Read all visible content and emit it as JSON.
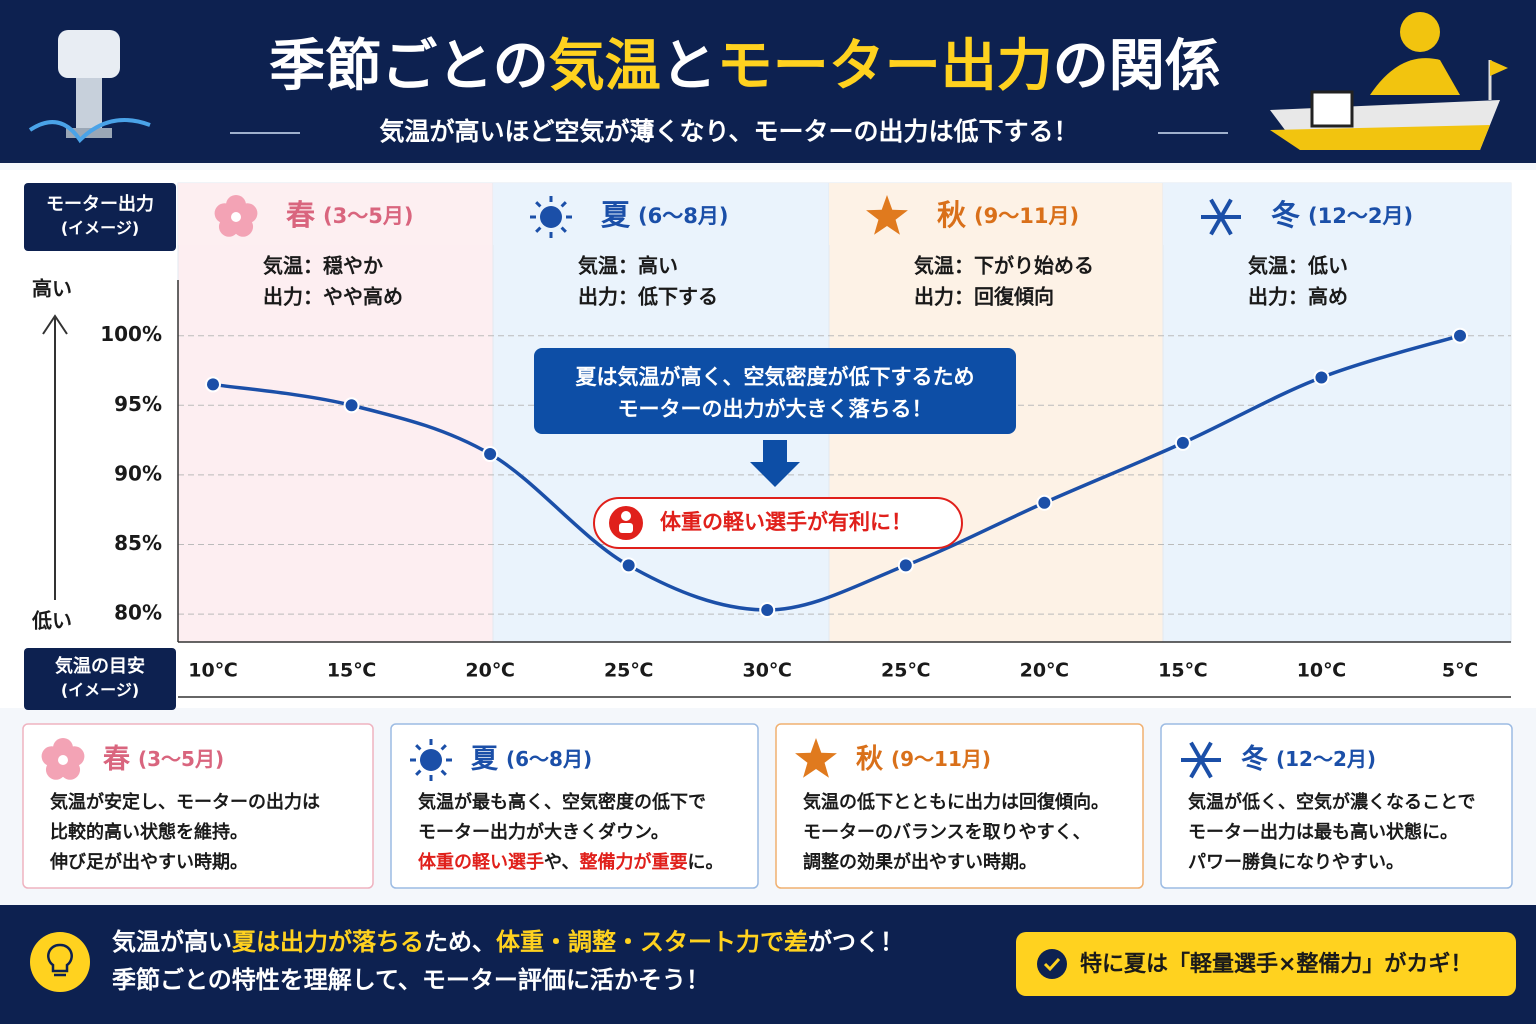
{
  "header": {
    "title": [
      {
        "text": "季節ごとの",
        "color": "#ffffff"
      },
      {
        "text": "気温",
        "color": "#ffd21f"
      },
      {
        "text": "と",
        "color": "#ffffff"
      },
      {
        "text": "モーター出力",
        "color": "#ffd21f"
      },
      {
        "text": "の関係",
        "color": "#ffffff"
      }
    ],
    "subtitle": "気温が高いほど空気が薄くなり、モーターの出力は低下する！"
  },
  "chart_data": {
    "type": "line",
    "y_label": [
      "モーター出力",
      "(イメージ)"
    ],
    "y_high": "高い",
    "y_low": "低い",
    "x_label": [
      "気温の目安",
      "(イメージ)"
    ],
    "categories": [
      "10℃",
      "15℃",
      "20℃",
      "25℃",
      "30℃",
      "25℃",
      "20℃",
      "15℃",
      "10℃",
      "5℃"
    ],
    "series": [
      {
        "name": "モーター出力",
        "color": "#1b4fa8",
        "values": [
          96.5,
          95,
          91.5,
          83.5,
          80.3,
          83.5,
          88,
          92.3,
          97,
          100
        ]
      }
    ],
    "ylim": [
      78,
      104
    ],
    "yticks": [
      {
        "value": 80,
        "label": "80%"
      },
      {
        "value": 85,
        "label": "85%"
      },
      {
        "value": 90,
        "label": "90%"
      },
      {
        "value": 95,
        "label": "95%"
      },
      {
        "value": 100,
        "label": "100%"
      }
    ],
    "grid": true,
    "bands": [
      {
        "name": "春",
        "period": "(3〜5月)",
        "color": "#d9657e",
        "fill": "#fdeef1",
        "lines": [
          "気温：穏やか",
          "出力：やや高め"
        ]
      },
      {
        "name": "夏",
        "period": "(6〜8月)",
        "color": "#1b4fa8",
        "fill": "#eaf3fc",
        "lines": [
          "気温：高い",
          "出力：低下する"
        ]
      },
      {
        "name": "秋",
        "period": "(9〜11月)",
        "color": "#d9701a",
        "fill": "#fdf2e6",
        "lines": [
          "気温：下がり始める",
          "出力：回復傾向"
        ]
      },
      {
        "name": "冬",
        "period": "(12〜2月)",
        "color": "#1b4fa8",
        "fill": "#eaf3fc",
        "lines": [
          "気温：低い",
          "出力：高め"
        ]
      }
    ],
    "annotations": [
      {
        "text": [
          "夏は気温が高く、空気密度が低下するため",
          "モーターの出力が大きく落ちる！"
        ]
      },
      {
        "text": [
          "体重の軽い選手が有利に！"
        ]
      }
    ]
  },
  "cards": [
    {
      "name": "春",
      "period": "(3〜5月)",
      "color": "#d9657e",
      "lines": [
        [
          {
            "text": "気温が安定し、モーターの出力は",
            "color": "#1a1a1a"
          }
        ],
        [
          {
            "text": "比較的高い状態を維持。",
            "color": "#1a1a1a"
          }
        ],
        [
          {
            "text": "伸び足が出やすい時期。",
            "color": "#1a1a1a"
          }
        ]
      ]
    },
    {
      "name": "夏",
      "period": "(6〜8月)",
      "color": "#1b4fa8",
      "lines": [
        [
          {
            "text": "気温が最も高く、空気密度の低下で",
            "color": "#1a1a1a"
          }
        ],
        [
          {
            "text": "モーター出力が大きくダウン。",
            "color": "#1a1a1a"
          }
        ],
        [
          {
            "text": "体重の軽い選手",
            "color": "#e0201b"
          },
          {
            "text": "や、",
            "color": "#1a1a1a"
          },
          {
            "text": "整備力が重要",
            "color": "#e0201b"
          },
          {
            "text": "に。",
            "color": "#1a1a1a"
          }
        ]
      ]
    },
    {
      "name": "秋",
      "period": "(9〜11月)",
      "color": "#d9701a",
      "lines": [
        [
          {
            "text": "気温の低下とともに出力は回復傾向。",
            "color": "#1a1a1a"
          }
        ],
        [
          {
            "text": "モーターのバランスを取りやすく、",
            "color": "#1a1a1a"
          }
        ],
        [
          {
            "text": "調整の効果が出やすい時期。",
            "color": "#1a1a1a"
          }
        ]
      ]
    },
    {
      "name": "冬",
      "period": "(12〜2月)",
      "color": "#1b4fa8",
      "lines": [
        [
          {
            "text": "気温が低く、空気が濃くなることで",
            "color": "#1a1a1a"
          }
        ],
        [
          {
            "text": "モーター出力は最も高い状態に。",
            "color": "#1a1a1a"
          }
        ],
        [
          {
            "text": "パワー勝負になりやすい。",
            "color": "#1a1a1a"
          }
        ]
      ]
    }
  ],
  "footer": {
    "lines": [
      [
        {
          "text": "気温が高い",
          "color": "#ffffff"
        },
        {
          "text": "夏は出力が落ちる",
          "color": "#ffd21f"
        },
        {
          "text": "ため、",
          "color": "#ffffff"
        },
        {
          "text": "体重・調整・スタート力で差",
          "color": "#ffd21f"
        },
        {
          "text": "がつく！",
          "color": "#ffffff"
        }
      ],
      [
        {
          "text": "季節ごとの特性を理解して、モーター評価に活かそう！",
          "color": "#ffffff"
        }
      ]
    ],
    "button": "特に夏は「軽量選手×整備力」がカギ！"
  }
}
